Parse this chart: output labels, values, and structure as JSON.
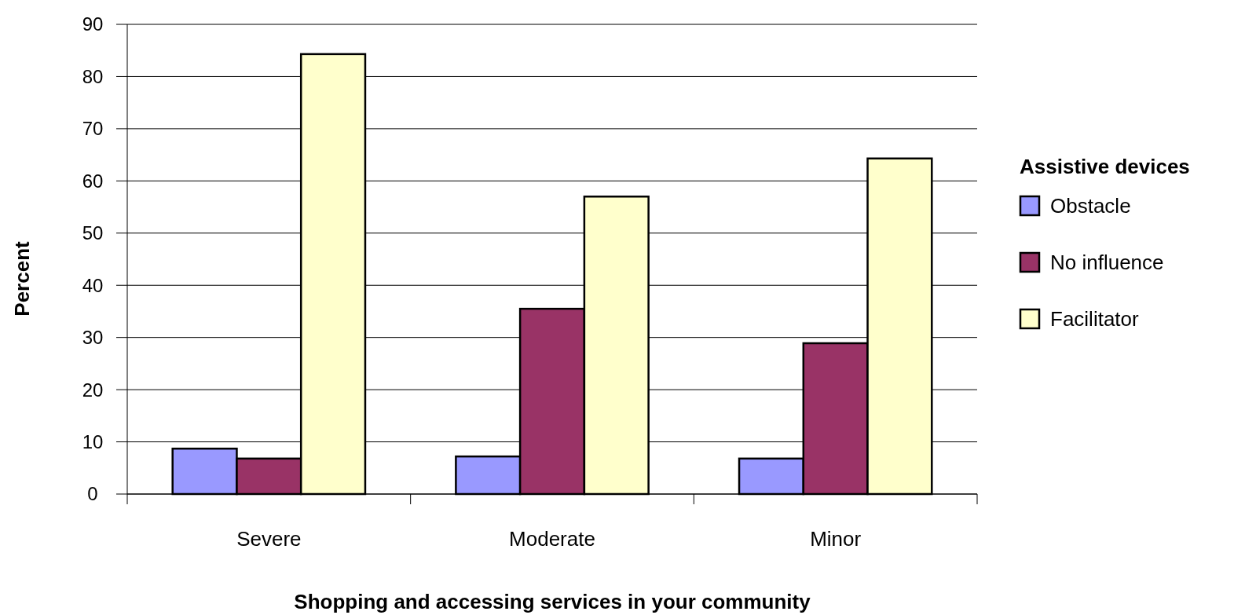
{
  "chart_data": {
    "type": "bar",
    "xlabel": "Shopping and accessing services in your community",
    "ylabel": "Percent",
    "legend_title": "Assistive devices",
    "categories": [
      "Severe",
      "Moderate",
      "Minor"
    ],
    "series": [
      {
        "name": "Obstacle",
        "color": "#9999ff",
        "values": [
          8.7,
          7.2,
          6.8
        ]
      },
      {
        "name": "No influence",
        "color": "#993366",
        "values": [
          6.8,
          35.5,
          28.9
        ]
      },
      {
        "name": "Facilitator",
        "color": "#ffffcc",
        "values": [
          84.3,
          57.0,
          64.3
        ]
      }
    ],
    "ylim": [
      0,
      90
    ],
    "yticks": [
      0,
      10,
      20,
      30,
      40,
      50,
      60,
      70,
      80,
      90
    ],
    "grid": "y",
    "legend": "right"
  }
}
